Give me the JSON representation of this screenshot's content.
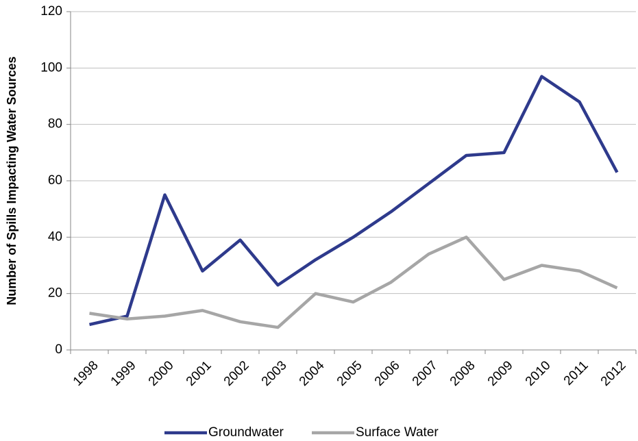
{
  "chart_data": {
    "type": "line",
    "y_label": "Number of Spills Impacting Water  Sources",
    "categories": [
      "1998",
      "1999",
      "2000",
      "2001",
      "2002",
      "2003",
      "2004",
      "2005",
      "2006",
      "2007",
      "2008",
      "2009",
      "2010",
      "2011",
      "2012"
    ],
    "series": [
      {
        "name": "Groundwater",
        "color": "#2e3a8c",
        "values": [
          9,
          12,
          55,
          28,
          39,
          23,
          32,
          40,
          49,
          59,
          69,
          70,
          97,
          88,
          63
        ]
      },
      {
        "name": "Surface Water",
        "color": "#a6a6a6",
        "values": [
          13,
          11,
          12,
          14,
          10,
          8,
          20,
          17,
          24,
          34,
          40,
          25,
          30,
          28,
          22
        ]
      }
    ],
    "ylim": [
      0,
      120
    ],
    "yticks": [
      0,
      20,
      40,
      60,
      80,
      100,
      120
    ],
    "grid": true,
    "legend": "bottom"
  }
}
